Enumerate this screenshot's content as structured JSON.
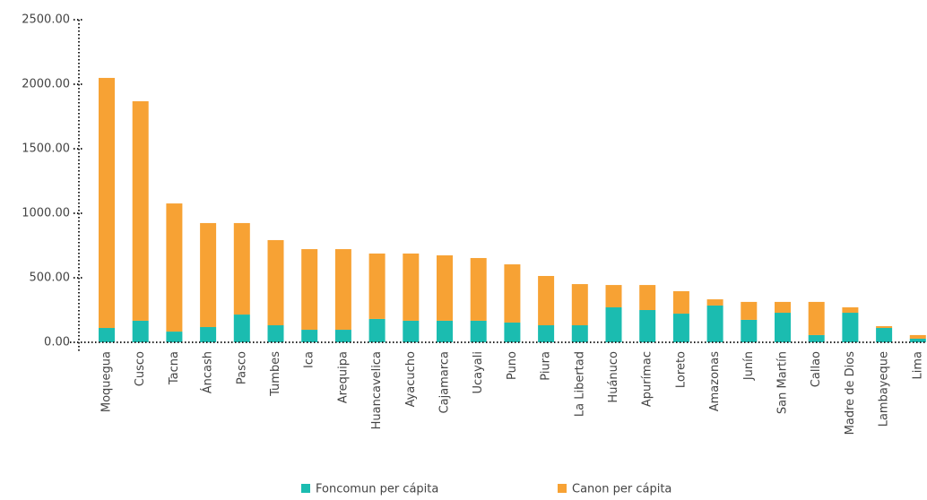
{
  "chart_data": {
    "type": "stacked_bar",
    "categories": [
      "Moquegua",
      "Cusco",
      "Tacna",
      "Áncash",
      "Pasco",
      "Tumbes",
      "Ica",
      "Arequipa",
      "Huancavelica",
      "Ayacucho",
      "Cajamarca",
      "Ucayali",
      "Puno",
      "Piura",
      "La Libertad",
      "Huánuco",
      "Apurímac",
      "Loreto",
      "Amazonas",
      "Junín",
      "San Martín",
      "Callao",
      "Madre de Dios",
      "Lambayeque",
      "Lima"
    ],
    "series": [
      {
        "name": "Foncomun per cápita",
        "color": "#1bbcb0",
        "values": [
          111,
          167,
          83,
          118,
          215,
          132,
          97,
          97,
          181,
          167,
          167,
          167,
          153,
          132,
          132,
          271,
          250,
          222,
          285,
          174,
          229,
          56,
          229,
          111,
          28
        ]
      },
      {
        "name": "Canon per cápita",
        "color": "#f7a234",
        "values": [
          1938,
          1701,
          993,
          806,
          709,
          660,
          625,
          625,
          507,
          521,
          507,
          486,
          451,
          382,
          319,
          173,
          194,
          174,
          48,
          139,
          84,
          257,
          42,
          14,
          28
        ]
      }
    ],
    "ylim": [
      0,
      2500
    ],
    "yticks": [
      {
        "value": 0,
        "label": "0.00"
      },
      {
        "value": 500,
        "label": "500.00"
      },
      {
        "value": 1000,
        "label": "1000.00"
      },
      {
        "value": 1500,
        "label": "1500.00"
      },
      {
        "value": 2000,
        "label": "2000.00"
      },
      {
        "value": 2500,
        "label": "2500.00"
      }
    ],
    "legend": "bottom"
  }
}
